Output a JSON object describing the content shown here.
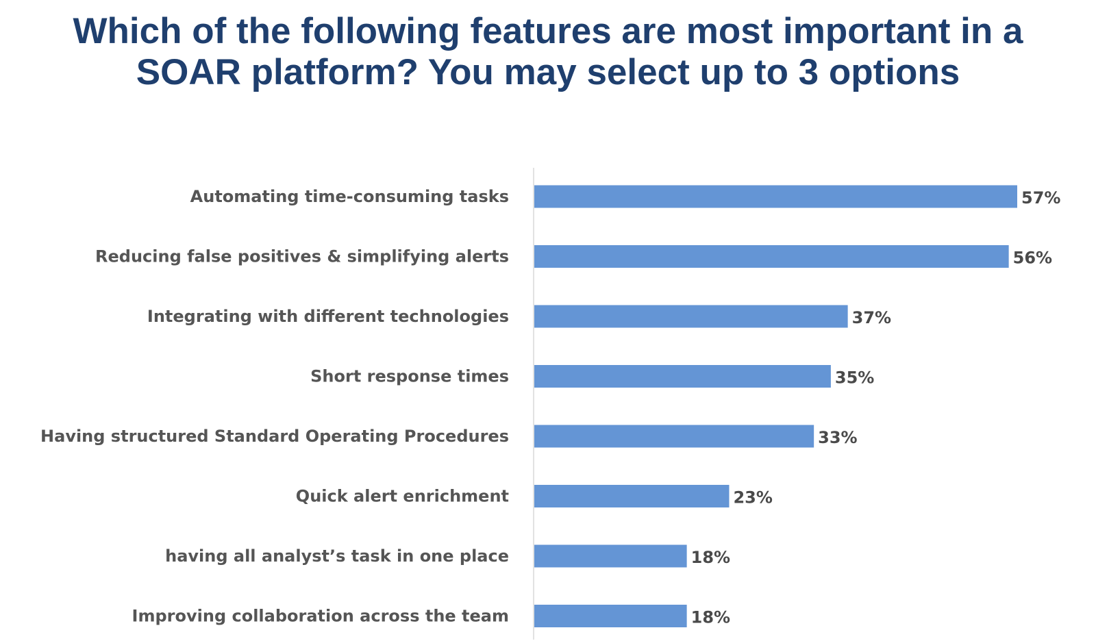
{
  "chart_data": {
    "type": "bar",
    "orientation": "horizontal",
    "title": {
      "line1": "Which of the following features are most important in a",
      "line2": "SOAR platform? You may select up to 3 options"
    },
    "categories": [
      "Automating time-consuming tasks",
      "Reducing false positives & simplifying alerts",
      "Integrating with different technologies",
      "Short response times",
      "Having structured Standard Operating Procedures",
      "Quick alert enrichment",
      "having all analyst’s task in one place",
      "Improving collaboration across the team"
    ],
    "values": [
      57,
      56,
      37,
      35,
      33,
      23,
      18,
      18
    ],
    "value_labels": [
      "57%",
      "56%",
      "37%",
      "35%",
      "33%",
      "23%",
      "18%",
      "18%"
    ],
    "unit": "%",
    "xlim": [
      0,
      57
    ],
    "grid": false,
    "legend": "none",
    "bar_color": "#6495d5",
    "axis_color": "#e2e2e2"
  }
}
